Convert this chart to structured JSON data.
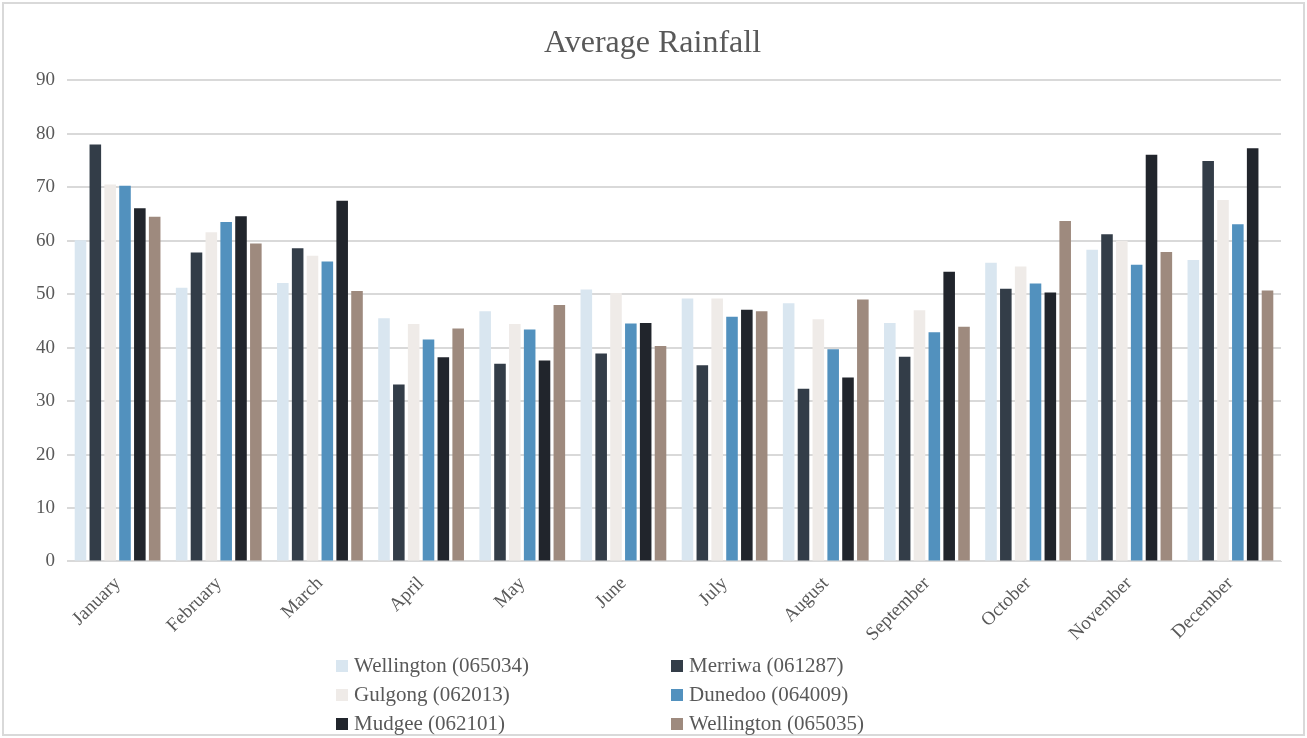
{
  "chart_data": {
    "type": "bar",
    "title": "Average Rainfall",
    "categories": [
      "January",
      "February",
      "March",
      "April",
      "May",
      "June",
      "July",
      "August",
      "September",
      "October",
      "November",
      "December"
    ],
    "series": [
      {
        "name": "Wellington (065034)",
        "color": "#d9e6f0",
        "values": [
          60.1,
          51.2,
          52.1,
          45.5,
          46.8,
          50.9,
          49.2,
          48.3,
          44.6,
          55.9,
          58.3,
          56.4
        ]
      },
      {
        "name": "Merriwa (061287)",
        "color": "#333d48",
        "values": [
          78.0,
          57.8,
          58.6,
          33.1,
          37.0,
          38.9,
          36.7,
          32.3,
          38.3,
          51.0,
          61.2,
          74.9
        ]
      },
      {
        "name": "Gulgong (062013)",
        "color": "#efebe8",
        "values": [
          70.5,
          61.6,
          57.2,
          44.4,
          44.4,
          50.2,
          49.2,
          45.3,
          47.0,
          55.2,
          60.0,
          67.6
        ]
      },
      {
        "name": "Dunedoo (064009)",
        "color": "#5291be",
        "values": [
          70.3,
          63.5,
          56.1,
          41.5,
          43.4,
          44.5,
          45.8,
          39.7,
          42.9,
          52.0,
          55.5,
          63.1
        ]
      },
      {
        "name": "Mudgee (062101)",
        "color": "#21252c",
        "values": [
          66.1,
          64.6,
          67.5,
          38.2,
          37.6,
          44.6,
          47.1,
          34.4,
          54.2,
          50.3,
          76.1,
          77.3
        ]
      },
      {
        "name": "Wellington (065035)",
        "color": "#9e8a7e",
        "values": [
          64.5,
          59.5,
          50.6,
          43.6,
          48.0,
          40.3,
          46.8,
          49.0,
          43.9,
          63.7,
          57.9,
          50.7
        ]
      }
    ],
    "ylim": [
      0,
      90
    ],
    "yticks": [
      0,
      10,
      20,
      30,
      40,
      50,
      60,
      70,
      80,
      90
    ],
    "grid": "y",
    "legend": "bottom"
  }
}
